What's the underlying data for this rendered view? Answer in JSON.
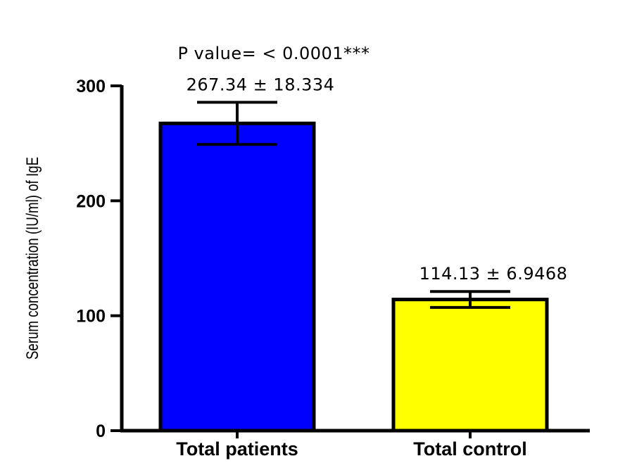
{
  "chart_data": {
    "type": "bar",
    "categories": [
      "Total patients",
      "Total control"
    ],
    "values": [
      267.34,
      114.13
    ],
    "errors": [
      18.334,
      6.9468
    ],
    "data_labels": [
      "267.34 ± 18.334",
      "114.13 ± 6.9468"
    ],
    "annotation": "P value= < 0.0001***",
    "ylabel": "Serum concentration (IU/ml) of IgE",
    "ylim": [
      0,
      300
    ],
    "yticks": [
      0,
      100,
      200,
      300
    ],
    "ytick_labels": [
      "0",
      "100",
      "200",
      "300"
    ],
    "bar_colors": [
      "#0000ff",
      "#ffff00"
    ],
    "grid": false
  }
}
